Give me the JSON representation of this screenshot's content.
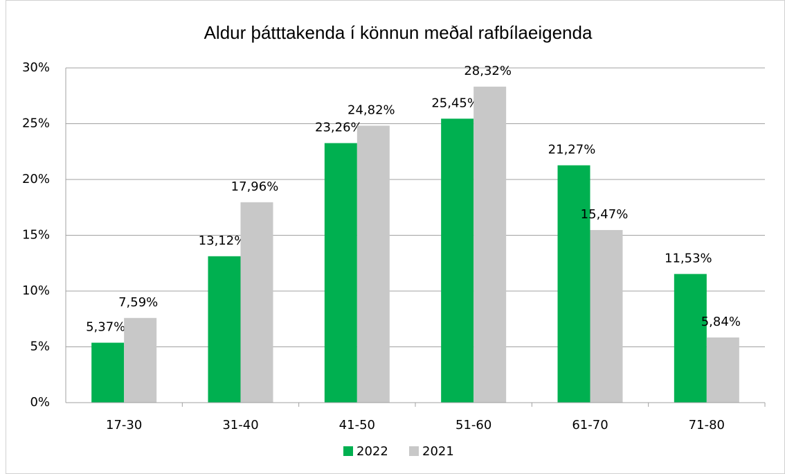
{
  "chart_data": {
    "type": "bar",
    "title": "Aldur þátttakenda í könnun meðal rafbílaeigenda",
    "categories": [
      "17-30",
      "31-40",
      "41-50",
      "51-60",
      "61-70",
      "71-80"
    ],
    "series": [
      {
        "name": "2022",
        "color": "#00b050",
        "values": [
          5.37,
          13.12,
          23.26,
          25.45,
          21.27,
          11.53
        ],
        "value_labels": [
          "5,37%",
          "13,12%",
          "23,26%",
          "25,45%",
          "21,27%",
          "11,53%"
        ]
      },
      {
        "name": "2021",
        "color": "#c8c8c8",
        "values": [
          7.59,
          17.96,
          24.82,
          28.32,
          15.47,
          5.84
        ],
        "value_labels": [
          "7,59%",
          "17,96%",
          "24,82%",
          "28,32%",
          "15,47%",
          "5,84%"
        ]
      }
    ],
    "ylim": [
      0,
      30
    ],
    "yticks": [
      {
        "value": 0,
        "label": "0%"
      },
      {
        "value": 5,
        "label": "5%"
      },
      {
        "value": 10,
        "label": "10%"
      },
      {
        "value": 15,
        "label": "15%"
      },
      {
        "value": 20,
        "label": "20%"
      },
      {
        "value": 25,
        "label": "25%"
      },
      {
        "value": 30,
        "label": "30%"
      }
    ],
    "grid": true,
    "legend": "bottom"
  }
}
